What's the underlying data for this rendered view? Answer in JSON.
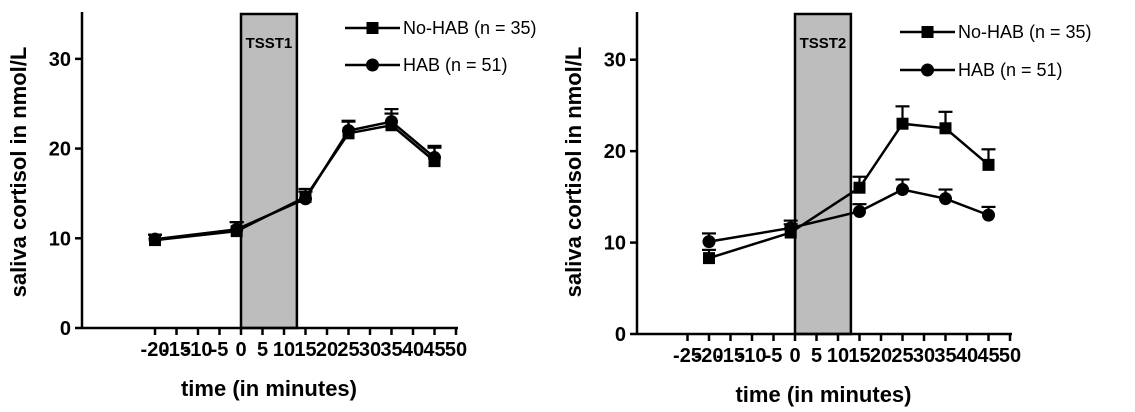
{
  "chart_data": [
    {
      "type": "line",
      "title": "",
      "xlabel": "time (in minutes)",
      "ylabel": "saliva cortisol in nmol/L",
      "xlim": [
        -25,
        50
      ],
      "ylim": [
        0,
        35
      ],
      "x_ticks": [
        -20,
        -15,
        -10,
        -5,
        0,
        5,
        10,
        15,
        20,
        25,
        30,
        35,
        40,
        45,
        50
      ],
      "x_tick_labels": [
        "-20",
        "-15",
        "-10",
        "-5",
        "0",
        "5",
        "10",
        "15",
        "20",
        "25",
        "30",
        "35",
        "40",
        "45",
        "50"
      ],
      "y_ticks": [
        0,
        10,
        20,
        30
      ],
      "y_tick_labels": [
        "0",
        "10",
        "20",
        "30"
      ],
      "grid": false,
      "legend_position": "top-right",
      "stress_period": {
        "label": "TSST1",
        "start": 0,
        "end": 13,
        "color": "#bdbdbd"
      },
      "series": [
        {
          "name": "No-HAB (n = 35)",
          "marker": "square",
          "color": "#000000",
          "x": [
            -20,
            -1,
            15,
            25,
            35,
            45
          ],
          "y": [
            9.8,
            10.8,
            14.6,
            21.7,
            22.6,
            18.6
          ],
          "error": [
            0.6,
            1.0,
            0.9,
            1.3,
            1.3,
            1.5
          ]
        },
        {
          "name": "HAB (n = 51)",
          "marker": "circle",
          "color": "#000000",
          "x": [
            -20,
            -1,
            15,
            25,
            35,
            45
          ],
          "y": [
            9.9,
            11.0,
            14.4,
            22.0,
            23.0,
            19.0
          ],
          "error": [
            0.5,
            0.8,
            0.8,
            1.1,
            1.4,
            1.3
          ]
        }
      ]
    },
    {
      "type": "line",
      "title": "",
      "xlabel": "time (in minutes)",
      "ylabel": "saliva cortisol in nmol/L",
      "xlim": [
        -25,
        50
      ],
      "ylim": [
        0,
        35
      ],
      "x_ticks": [
        -25,
        -20,
        -15,
        -10,
        -5,
        0,
        5,
        10,
        15,
        20,
        25,
        30,
        35,
        40,
        45,
        50
      ],
      "x_tick_labels": [
        "-25",
        "-20",
        "-15",
        "-10",
        "-5",
        "0",
        "5",
        "10",
        "15",
        "20",
        "25",
        "30",
        "35",
        "40",
        "45",
        "50"
      ],
      "y_ticks": [
        0,
        10,
        20,
        30
      ],
      "y_tick_labels": [
        "0",
        "10",
        "20",
        "30"
      ],
      "grid": false,
      "legend_position": "top-right",
      "stress_period": {
        "label": "TSST2",
        "start": 0,
        "end": 13,
        "color": "#bdbdbd"
      },
      "series": [
        {
          "name": "No-HAB (n = 35)",
          "marker": "square",
          "color": "#000000",
          "x": [
            -20,
            -1,
            15,
            25,
            35,
            45
          ],
          "y": [
            8.3,
            11.1,
            16.0,
            23.0,
            22.5,
            18.5
          ],
          "error": [
            0.9,
            0.9,
            1.2,
            1.9,
            1.8,
            1.7
          ]
        },
        {
          "name": "HAB (n = 51)",
          "marker": "circle",
          "color": "#000000",
          "x": [
            -20,
            -1,
            15,
            25,
            35,
            45
          ],
          "y": [
            10.1,
            11.6,
            13.4,
            15.8,
            14.8,
            13.0
          ],
          "error": [
            0.9,
            0.8,
            0.8,
            1.1,
            1.0,
            0.9
          ]
        }
      ]
    }
  ]
}
